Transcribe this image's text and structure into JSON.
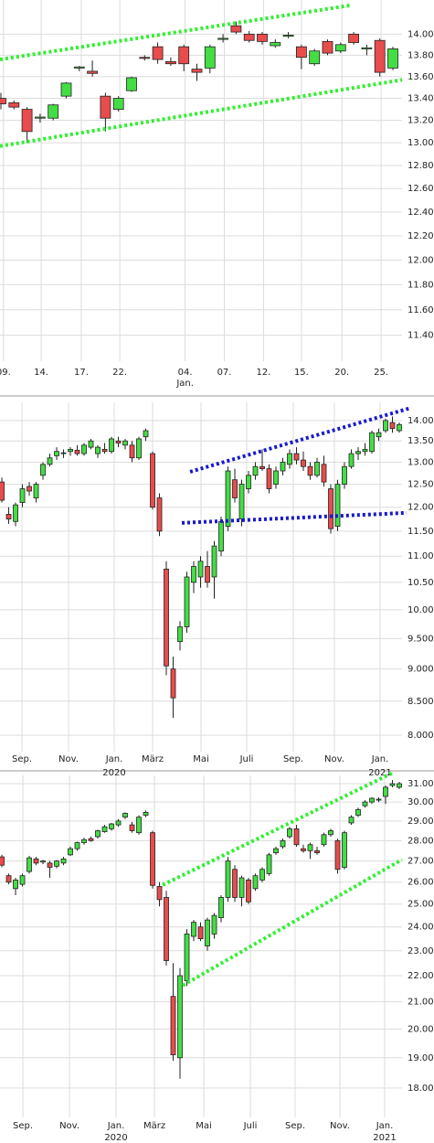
{
  "chart_data": [
    {
      "type": "candlestick",
      "log": true,
      "grid": true,
      "up_color": "#44dd44",
      "down_color": "#e84c4c",
      "x": [
        0,
        1,
        2,
        3,
        4,
        5,
        6,
        7,
        8,
        9,
        10,
        11,
        12,
        13,
        14,
        15,
        16,
        17,
        18,
        19,
        20,
        21,
        22,
        23,
        24,
        25,
        26,
        27,
        28,
        29,
        30
      ],
      "open": [
        13.4,
        13.36,
        13.3,
        13.22,
        13.22,
        13.42,
        13.68,
        13.65,
        13.42,
        13.3,
        13.47,
        13.78,
        13.88,
        13.74,
        13.88,
        13.67,
        13.68,
        13.95,
        14.08,
        14.0,
        14.0,
        13.89,
        13.98,
        13.88,
        13.72,
        13.93,
        13.84,
        14.0,
        13.86,
        13.94,
        13.68
      ],
      "high": [
        13.45,
        13.38,
        13.32,
        13.26,
        13.35,
        13.55,
        13.7,
        13.75,
        13.45,
        13.42,
        13.6,
        13.8,
        13.92,
        13.78,
        13.9,
        13.72,
        13.9,
        14.0,
        14.12,
        14.03,
        14.02,
        13.95,
        14.02,
        13.9,
        13.86,
        13.95,
        13.92,
        14.02,
        13.9,
        13.96,
        13.88
      ],
      "low": [
        13.3,
        13.3,
        13.0,
        13.18,
        13.2,
        13.4,
        13.65,
        13.6,
        13.1,
        13.28,
        13.46,
        13.75,
        13.72,
        13.7,
        13.65,
        13.56,
        13.63,
        13.92,
        14.0,
        13.92,
        13.9,
        13.87,
        13.96,
        13.67,
        13.7,
        13.8,
        13.82,
        13.9,
        13.8,
        13.6,
        13.66
      ],
      "close": [
        13.35,
        13.32,
        13.1,
        13.23,
        13.34,
        13.54,
        13.69,
        13.63,
        13.22,
        13.4,
        13.59,
        13.77,
        13.76,
        13.72,
        13.72,
        13.64,
        13.88,
        13.96,
        14.02,
        13.94,
        13.93,
        13.92,
        13.99,
        13.78,
        13.84,
        13.82,
        13.9,
        13.92,
        13.87,
        13.64,
        13.86
      ],
      "xlim": [
        -0.07,
        30.7
      ],
      "ylim": [
        11.2,
        14.33
      ],
      "xticks": [
        {
          "value": 0.2,
          "label": "09."
        },
        {
          "value": 3.08,
          "label": "14."
        },
        {
          "value": 6.15,
          "label": "17."
        },
        {
          "value": 9.1,
          "label": "22."
        },
        {
          "value": 14.1,
          "label": "04."
        },
        {
          "value": 17.1,
          "label": "07."
        },
        {
          "value": 20.1,
          "label": "12."
        },
        {
          "value": 23.0,
          "label": "15."
        },
        {
          "value": 26.1,
          "label": "20."
        },
        {
          "value": 29.1,
          "label": "25."
        }
      ],
      "x_period_labels": [
        {
          "value": 14.1,
          "label": "Jan."
        }
      ],
      "yticks": [
        {
          "value": 14.0,
          "label": "14.000"
        },
        {
          "value": 13.8,
          "label": "13.800"
        },
        {
          "value": 13.6,
          "label": "13.600"
        },
        {
          "value": 13.4,
          "label": "13.400"
        },
        {
          "value": 13.2,
          "label": "13.200"
        },
        {
          "value": 13.0,
          "label": "13.000"
        },
        {
          "value": 12.8,
          "label": "12.800"
        },
        {
          "value": 12.6,
          "label": "12.600"
        },
        {
          "value": 12.4,
          "label": "12.400"
        },
        {
          "value": 12.2,
          "label": "12.200"
        },
        {
          "value": 12.0,
          "label": "12.000"
        },
        {
          "value": 11.8,
          "label": "11.800"
        },
        {
          "value": 11.6,
          "label": "11.600"
        },
        {
          "value": 11.4,
          "label": "11.400"
        }
      ],
      "trendlines": [
        {
          "color": "#33ee33",
          "x": [
            -0.07,
            26.85
          ],
          "y": [
            13.76,
            14.28
          ]
        },
        {
          "color": "#33ee33",
          "x": [
            -0.07,
            30.7
          ],
          "y": [
            12.97,
            13.57
          ]
        }
      ]
    },
    {
      "type": "candlestick",
      "log": true,
      "grid": true,
      "up_color": "#44dd44",
      "down_color": "#e84c4c",
      "x": [
        0,
        1,
        2,
        3,
        4,
        5,
        6,
        7,
        8,
        9,
        10,
        11,
        12,
        13,
        14,
        15,
        16,
        17,
        18,
        19,
        20,
        21,
        22,
        23,
        24,
        25,
        26,
        27,
        28,
        29,
        30,
        31,
        32,
        33,
        34,
        35,
        36,
        37,
        38,
        39,
        40,
        41,
        42,
        43,
        44,
        45,
        46,
        47,
        48,
        49,
        50,
        51,
        52,
        53,
        54,
        55,
        56,
        57,
        58
      ],
      "open": [
        12.55,
        11.85,
        11.7,
        12.1,
        12.45,
        12.2,
        12.7,
        12.95,
        13.15,
        13.2,
        13.25,
        13.28,
        13.2,
        13.35,
        13.2,
        13.3,
        13.25,
        13.5,
        13.4,
        13.4,
        13.1,
        13.6,
        13.2,
        12.2,
        10.75,
        9.0,
        9.45,
        9.7,
        10.5,
        10.6,
        10.8,
        10.6,
        11.1,
        11.6,
        12.6,
        11.75,
        12.4,
        12.7,
        12.9,
        12.85,
        12.5,
        12.8,
        12.95,
        13.2,
        13.05,
        12.9,
        12.7,
        12.95,
        12.4,
        11.6,
        12.5,
        12.9,
        13.2,
        13.25,
        13.25,
        13.6,
        13.75,
        13.95,
        13.75
      ],
      "high": [
        12.65,
        12.0,
        12.1,
        12.5,
        12.55,
        12.55,
        13.0,
        13.2,
        13.35,
        13.3,
        13.35,
        13.4,
        13.45,
        13.55,
        13.4,
        13.45,
        13.6,
        13.6,
        13.55,
        13.5,
        13.6,
        13.8,
        13.25,
        12.3,
        10.9,
        9.2,
        9.8,
        10.7,
        10.9,
        11.0,
        11.1,
        11.3,
        11.8,
        12.9,
        12.85,
        12.6,
        12.8,
        13.0,
        13.3,
        12.95,
        12.9,
        13.1,
        13.3,
        13.35,
        13.25,
        13.0,
        13.1,
        13.15,
        12.5,
        12.6,
        13.0,
        13.3,
        13.35,
        13.45,
        13.75,
        13.8,
        14.05,
        14.1,
        13.95
      ],
      "low": [
        12.1,
        11.65,
        11.6,
        12.0,
        12.25,
        12.1,
        12.6,
        12.9,
        13.05,
        13.1,
        13.15,
        13.15,
        13.15,
        13.3,
        13.1,
        13.2,
        13.2,
        13.35,
        13.3,
        13.0,
        13.05,
        13.5,
        11.95,
        11.4,
        8.9,
        8.25,
        9.3,
        9.6,
        10.3,
        10.4,
        10.4,
        10.2,
        11.0,
        11.5,
        12.1,
        11.6,
        12.3,
        12.6,
        12.8,
        12.3,
        12.4,
        12.7,
        12.85,
        12.95,
        12.8,
        12.6,
        12.65,
        12.45,
        11.45,
        11.5,
        12.4,
        12.85,
        13.05,
        13.15,
        13.2,
        13.5,
        13.7,
        13.7,
        13.7
      ],
      "close": [
        12.15,
        11.75,
        12.05,
        12.4,
        12.35,
        12.5,
        12.95,
        13.1,
        13.25,
        13.22,
        13.3,
        13.2,
        13.4,
        13.5,
        13.35,
        13.25,
        13.55,
        13.45,
        13.5,
        13.1,
        13.55,
        13.75,
        12.0,
        11.5,
        9.05,
        8.55,
        9.7,
        10.6,
        10.8,
        10.9,
        10.5,
        11.2,
        11.7,
        12.8,
        12.2,
        12.5,
        12.7,
        12.9,
        12.85,
        12.4,
        12.8,
        13.0,
        13.2,
        13.05,
        12.9,
        12.7,
        13.0,
        12.55,
        11.55,
        12.5,
        12.9,
        13.2,
        13.25,
        13.3,
        13.7,
        13.7,
        14.0,
        13.8,
        13.9
      ],
      "xlim": [
        -0.27,
        58.4
      ],
      "ylim": [
        7.77,
        14.46
      ],
      "xticks": [
        {
          "value": 2.93,
          "label": "Sep."
        },
        {
          "value": 9.73,
          "label": "Nov."
        },
        {
          "value": 16.4,
          "label": "Jan."
        },
        {
          "value": 22.0,
          "label": "März"
        },
        {
          "value": 29.07,
          "label": "Mai"
        },
        {
          "value": 35.73,
          "label": "Juli"
        },
        {
          "value": 42.53,
          "label": "Sep."
        },
        {
          "value": 48.53,
          "label": "Nov."
        },
        {
          "value": 55.2,
          "label": "Jan."
        }
      ],
      "x_period_labels": [
        {
          "value": 16.4,
          "label": "2020"
        },
        {
          "value": 55.2,
          "label": "2021"
        }
      ],
      "yticks": [
        {
          "value": 14.0,
          "label": "14.000"
        },
        {
          "value": 13.5,
          "label": "13.500"
        },
        {
          "value": 13.0,
          "label": "13.000"
        },
        {
          "value": 12.5,
          "label": "12.500"
        },
        {
          "value": 12.0,
          "label": "12.000"
        },
        {
          "value": 11.5,
          "label": "11.500"
        },
        {
          "value": 11.0,
          "label": "11.000"
        },
        {
          "value": 10.5,
          "label": "10.500"
        },
        {
          "value": 10.0,
          "label": "10.000"
        },
        {
          "value": 9.5,
          "label": "9.500"
        },
        {
          "value": 9.0,
          "label": "9.000"
        },
        {
          "value": 8.5,
          "label": "8.500"
        },
        {
          "value": 8.0,
          "label": "8.000"
        }
      ],
      "trendlines": [
        {
          "color": "#1a1acc",
          "x": [
            27.47,
            59.73
          ],
          "y": [
            12.78,
            14.32
          ]
        },
        {
          "color": "#1a1acc",
          "x": [
            26.27,
            59.07
          ],
          "y": [
            11.67,
            11.88
          ]
        }
      ]
    },
    {
      "type": "candlestick",
      "log": true,
      "grid": true,
      "up_color": "#44dd44",
      "down_color": "#e84c4c",
      "x": [
        0,
        1,
        2,
        3,
        4,
        5,
        6,
        7,
        8,
        9,
        10,
        11,
        12,
        13,
        14,
        15,
        16,
        17,
        18,
        19,
        20,
        21,
        22,
        23,
        24,
        25,
        26,
        27,
        28,
        29,
        30,
        31,
        32,
        33,
        34,
        35,
        36,
        37,
        38,
        39,
        40,
        41,
        42,
        43,
        44,
        45,
        46,
        47,
        48,
        49,
        50,
        51,
        52,
        53,
        54,
        55,
        56,
        57,
        58
      ],
      "open": [
        27.2,
        26.3,
        25.7,
        25.9,
        26.5,
        27.1,
        26.95,
        26.9,
        26.75,
        26.9,
        27.3,
        27.6,
        27.9,
        28.1,
        28.2,
        28.45,
        28.6,
        28.8,
        29.2,
        28.8,
        28.4,
        29.3,
        28.4,
        25.8,
        25.3,
        21.2,
        19.0,
        21.8,
        23.6,
        24.0,
        23.2,
        23.7,
        24.4,
        25.3,
        26.6,
        25.3,
        26.1,
        25.7,
        26.1,
        26.4,
        27.4,
        27.7,
        28.2,
        28.6,
        27.6,
        27.5,
        27.5,
        27.8,
        28.3,
        28.0,
        26.7,
        28.9,
        29.3,
        29.8,
        30.0,
        30.1,
        30.3,
        30.9,
        30.8
      ],
      "high": [
        27.3,
        26.4,
        26.2,
        26.4,
        27.25,
        27.2,
        27.05,
        27.0,
        27.05,
        27.2,
        27.7,
        27.95,
        28.15,
        28.2,
        28.55,
        28.8,
        28.9,
        29.1,
        29.45,
        28.95,
        29.3,
        29.55,
        28.5,
        26.0,
        25.6,
        22.5,
        22.3,
        23.9,
        24.3,
        24.2,
        24.4,
        24.6,
        25.4,
        27.2,
        26.8,
        26.3,
        26.2,
        26.4,
        26.7,
        27.4,
        27.7,
        28.1,
        28.7,
        28.8,
        27.8,
        27.9,
        27.7,
        28.4,
        28.6,
        28.1,
        28.5,
        29.3,
        29.7,
        30.1,
        30.25,
        30.25,
        30.9,
        31.2,
        31.1
      ],
      "low": [
        26.7,
        25.9,
        25.4,
        25.8,
        26.4,
        26.8,
        26.85,
        26.2,
        26.65,
        26.8,
        27.25,
        27.5,
        27.8,
        27.95,
        28.1,
        28.4,
        28.5,
        28.7,
        29.1,
        28.4,
        28.3,
        29.2,
        25.7,
        24.9,
        22.4,
        18.9,
        18.3,
        21.6,
        23.4,
        23.4,
        23.0,
        23.5,
        24.2,
        25.1,
        25.1,
        24.9,
        25.0,
        25.6,
        26.0,
        26.3,
        27.3,
        27.6,
        28.1,
        27.7,
        27.4,
        27.1,
        27.3,
        27.7,
        28.2,
        26.4,
        26.6,
        28.8,
        29.2,
        29.7,
        29.9,
        30.0,
        29.9,
        30.8,
        30.7
      ],
      "close": [
        26.8,
        26.0,
        26.1,
        26.3,
        27.15,
        26.9,
        27.0,
        26.7,
        27.0,
        27.1,
        27.6,
        27.9,
        28.05,
        28.0,
        28.5,
        28.7,
        28.85,
        29.0,
        29.4,
        28.5,
        29.2,
        29.45,
        25.85,
        25.2,
        22.6,
        19.1,
        22.0,
        23.7,
        24.2,
        23.5,
        24.3,
        24.5,
        25.3,
        27.0,
        25.3,
        26.2,
        25.1,
        26.3,
        26.6,
        27.3,
        27.6,
        28.0,
        28.6,
        27.8,
        27.5,
        27.8,
        27.4,
        28.3,
        28.5,
        26.6,
        28.4,
        29.2,
        29.6,
        30.0,
        30.2,
        30.15,
        30.8,
        31.0,
        31.0
      ],
      "xlim": [
        -0.27,
        58.4
      ],
      "ylim": [
        17.08,
        31.46
      ],
      "xticks": [
        {
          "value": 3.07,
          "label": "Sep."
        },
        {
          "value": 9.87,
          "label": "Nov."
        },
        {
          "value": 16.67,
          "label": "Jan."
        },
        {
          "value": 22.27,
          "label": "März"
        },
        {
          "value": 29.47,
          "label": "Mai"
        },
        {
          "value": 36.27,
          "label": "Juli"
        },
        {
          "value": 42.8,
          "label": "Sep."
        },
        {
          "value": 49.33,
          "label": "Nov."
        },
        {
          "value": 55.87,
          "label": "Jan."
        }
      ],
      "x_period_labels": [
        {
          "value": 16.67,
          "label": "2020"
        },
        {
          "value": 55.87,
          "label": "2021"
        }
      ],
      "yticks": [
        {
          "value": 31.0,
          "label": "31.000"
        },
        {
          "value": 30.0,
          "label": "30.000"
        },
        {
          "value": 29.0,
          "label": "29.000"
        },
        {
          "value": 28.0,
          "label": "28.000"
        },
        {
          "value": 27.0,
          "label": "27.000"
        },
        {
          "value": 26.0,
          "label": "26.000"
        },
        {
          "value": 25.0,
          "label": "25.000"
        },
        {
          "value": 24.0,
          "label": "24.000"
        },
        {
          "value": 23.0,
          "label": "23.000"
        },
        {
          "value": 22.0,
          "label": "22.000"
        },
        {
          "value": 21.0,
          "label": "21.000"
        },
        {
          "value": 20.0,
          "label": "20.000"
        },
        {
          "value": 19.0,
          "label": "19.000"
        },
        {
          "value": 18.0,
          "label": "18.000"
        }
      ],
      "trendlines": [
        {
          "color": "#33ee33",
          "x": [
            23.47,
            57.07
          ],
          "y": [
            25.87,
            31.61
          ]
        },
        {
          "color": "#33ee33",
          "x": [
            26.4,
            58.4
          ],
          "y": [
            21.62,
            27.07
          ]
        }
      ]
    }
  ]
}
